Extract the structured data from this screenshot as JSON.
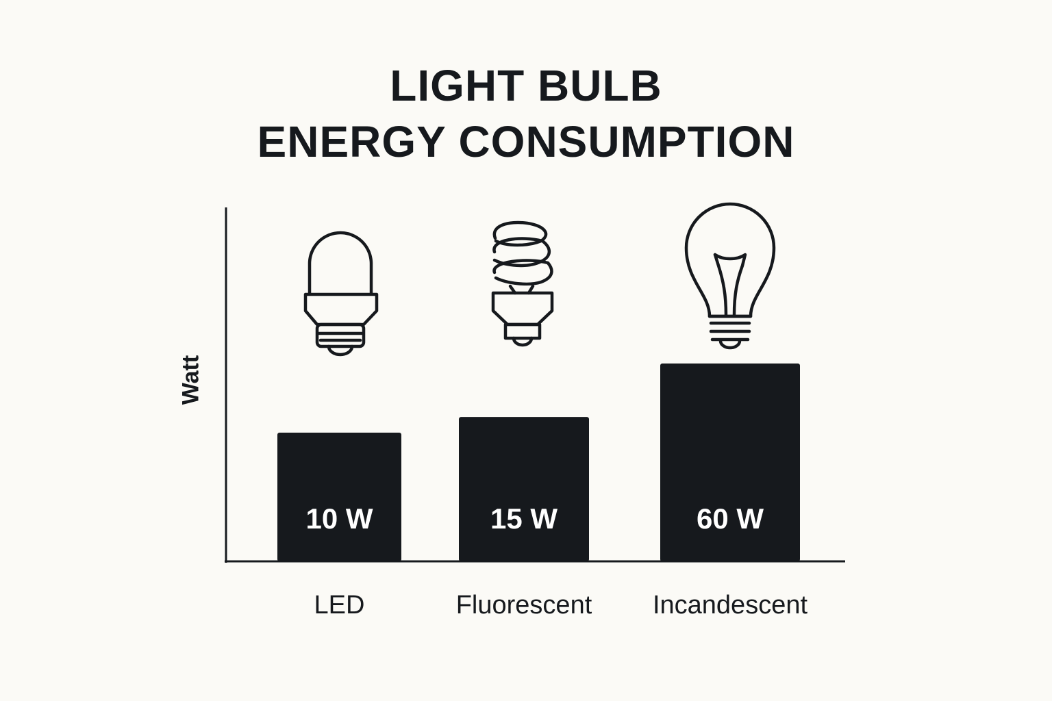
{
  "title_lines": [
    "LIGHT BULB",
    "ENERGY CONSUMPTION"
  ],
  "colors": {
    "background": "#fbfaf6",
    "bar": "#16191d",
    "bar_label": "#ffffff",
    "text": "#16191d"
  },
  "icons": [
    "led-bulb-icon",
    "cfl-spiral-bulb-icon",
    "incandescent-bulb-icon"
  ],
  "chart_data": {
    "type": "bar",
    "title": "LIGHT BULB ENERGY CONSUMPTION",
    "xlabel": "",
    "ylabel": "Watt",
    "categories": [
      "LED",
      "Fluorescent",
      "Incandescent"
    ],
    "values": [
      10,
      15,
      60
    ],
    "data_labels": [
      "10 W",
      "15 W",
      "60 W"
    ],
    "grid": false,
    "legend": "none"
  }
}
